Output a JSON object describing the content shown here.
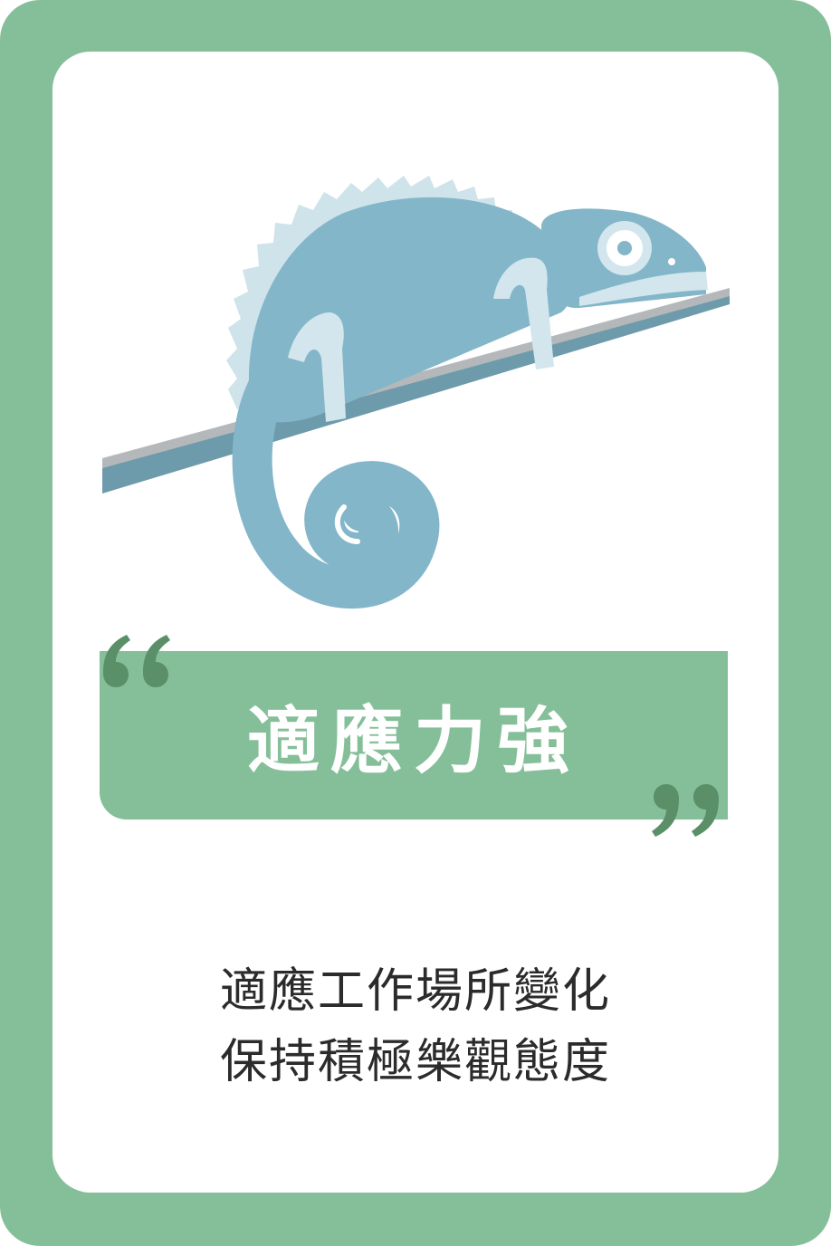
{
  "card": {
    "title": "適應力強",
    "line1": "適應工作場所變化",
    "line2": "保持積極樂觀態度",
    "illustration": "chameleon-on-branch",
    "colors": {
      "frame": "#85bf99",
      "quote_mark": "#5a8f68",
      "chameleon": "#84b6c9",
      "chameleon_light": "#d3e6ee",
      "branch": "#6e9bab",
      "branch_top": "#b5b8ba",
      "text": "#2b2b2b"
    }
  }
}
